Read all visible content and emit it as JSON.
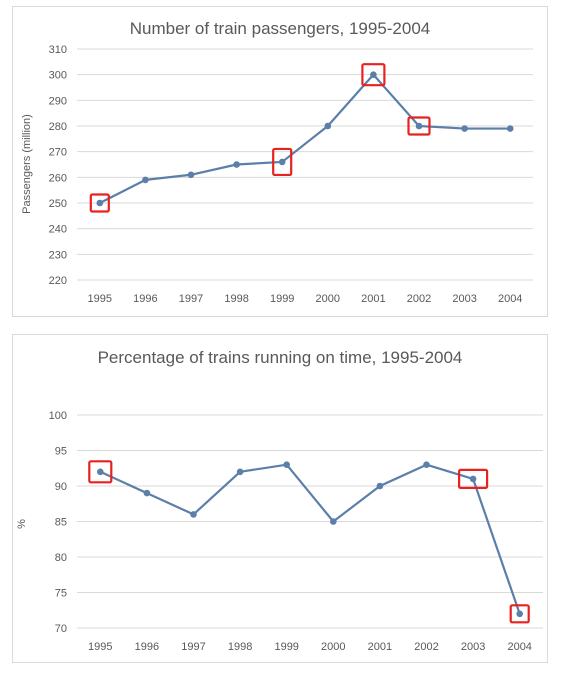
{
  "chart_data": [
    {
      "type": "line",
      "title": "Number of train passengers, 1995-2004",
      "xlabel": "",
      "ylabel": "Passengers (million)",
      "categories": [
        "1995",
        "1996",
        "1997",
        "1998",
        "1999",
        "2000",
        "2001",
        "2002",
        "2003",
        "2004"
      ],
      "series": [
        {
          "values": [
            250,
            259,
            261,
            265,
            266,
            280,
            300,
            280,
            279,
            279
          ]
        }
      ],
      "ylim": [
        220,
        310
      ],
      "yticks": [
        220,
        230,
        240,
        250,
        260,
        270,
        280,
        290,
        300,
        310
      ],
      "grid": true,
      "legend": "none",
      "highlighted_years": [
        "1995",
        "1999",
        "2001",
        "2002"
      ]
    },
    {
      "type": "line",
      "title": "Percentage of trains running on time, 1995-2004",
      "xlabel": "",
      "ylabel": "%",
      "categories": [
        "1995",
        "1996",
        "1997",
        "1998",
        "1999",
        "2000",
        "2001",
        "2002",
        "2003",
        "2004"
      ],
      "series": [
        {
          "values": [
            92,
            89,
            86,
            92,
            93,
            85,
            90,
            93,
            91,
            72
          ]
        }
      ],
      "ylim": [
        70,
        100
      ],
      "yticks": [
        70,
        75,
        80,
        85,
        90,
        95,
        100
      ],
      "grid": true,
      "legend": "none",
      "highlighted_years": [
        "1995",
        "2003",
        "2004"
      ]
    }
  ],
  "colors": {
    "line": "#5b7fa8",
    "highlight": "#e8211f",
    "grid": "#d9d9d9",
    "text": "#595959"
  }
}
